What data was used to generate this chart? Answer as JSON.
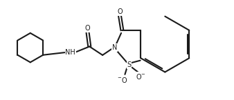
{
  "bg_color": "#ffffff",
  "line_color": "#1a1a1a",
  "line_width": 1.5,
  "font_size": 7.0,
  "figsize": [
    3.38,
    1.45
  ],
  "dpi": 100,
  "xlim": [
    0,
    10
  ],
  "ylim": [
    0,
    4
  ]
}
